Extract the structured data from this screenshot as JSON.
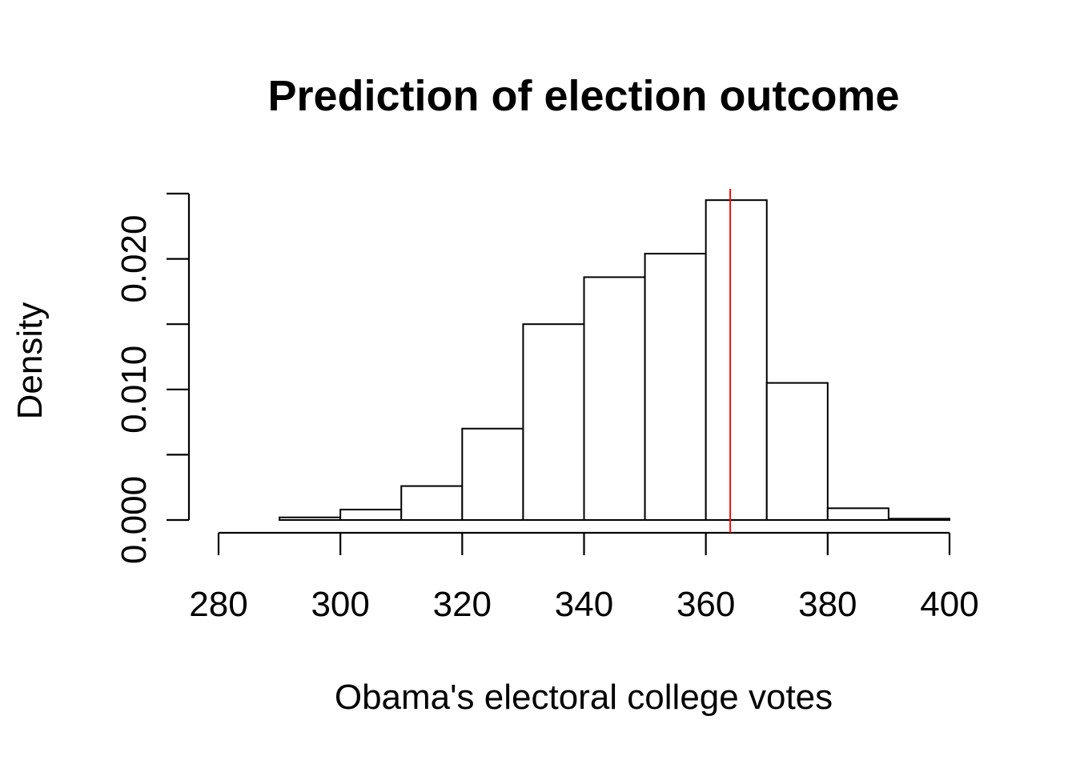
{
  "chart_data": {
    "type": "bar",
    "title": "Prediction of election outcome",
    "xlabel": "Obama's electoral college votes",
    "ylabel": "Density",
    "xlim": [
      280,
      400
    ],
    "ylim": [
      0,
      0.025
    ],
    "x_ticks": [
      280,
      300,
      320,
      340,
      360,
      380,
      400
    ],
    "x_tick_labels": [
      "280",
      "300",
      "320",
      "340",
      "360",
      "380",
      "400"
    ],
    "y_ticks": [
      0,
      0.005,
      0.01,
      0.015,
      0.02,
      0.025
    ],
    "y_tick_labels": [
      "0.000",
      "",
      "0.010",
      "",
      "0.020",
      ""
    ],
    "bins": [
      {
        "start": 280,
        "end": 290,
        "density": 0.0
      },
      {
        "start": 290,
        "end": 300,
        "density": 0.0002
      },
      {
        "start": 300,
        "end": 310,
        "density": 0.0008
      },
      {
        "start": 310,
        "end": 320,
        "density": 0.0026
      },
      {
        "start": 320,
        "end": 330,
        "density": 0.007
      },
      {
        "start": 330,
        "end": 340,
        "density": 0.015
      },
      {
        "start": 340,
        "end": 350,
        "density": 0.0186
      },
      {
        "start": 350,
        "end": 360,
        "density": 0.0204
      },
      {
        "start": 360,
        "end": 370,
        "density": 0.0245
      },
      {
        "start": 370,
        "end": 380,
        "density": 0.0105
      },
      {
        "start": 380,
        "end": 390,
        "density": 0.0009
      },
      {
        "start": 390,
        "end": 400,
        "density": 0.0001
      }
    ],
    "reference_line": {
      "x": 364,
      "color": "#ee1111"
    },
    "grid": false,
    "legend": "none"
  }
}
